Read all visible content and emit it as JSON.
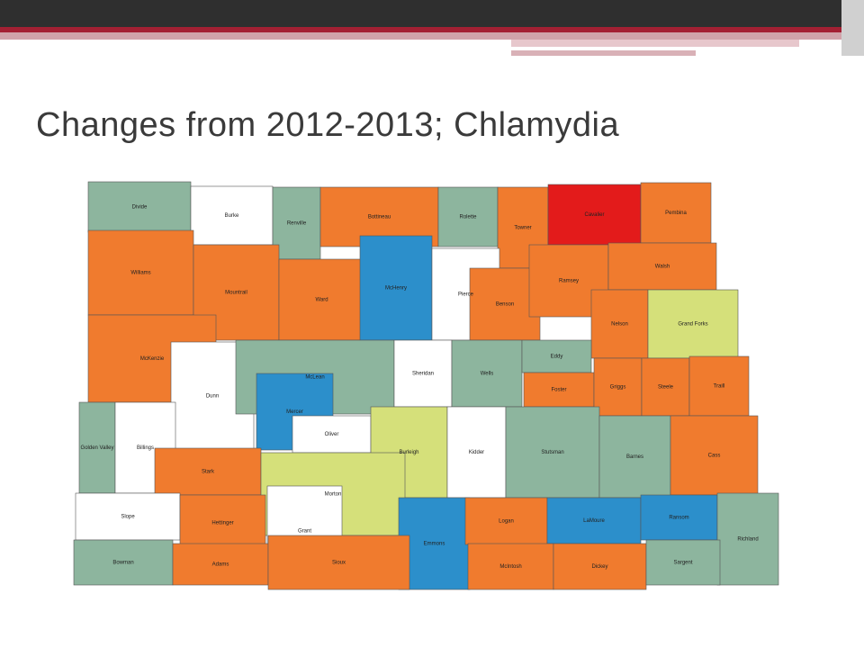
{
  "title": "Changes from 2012-2013; Chlamydia",
  "counties": [
    {
      "name": "Divide",
      "color": "#8db59e"
    },
    {
      "name": "Burke",
      "color": "#ffffff"
    },
    {
      "name": "Renville",
      "color": "#8db59e"
    },
    {
      "name": "Bottineau",
      "color": "#f07b2e"
    },
    {
      "name": "Rolette",
      "color": "#8db59e"
    },
    {
      "name": "Towner",
      "color": "#f07b2e"
    },
    {
      "name": "Cavalier",
      "color": "#e31b1b"
    },
    {
      "name": "Pembina",
      "color": "#f07b2e"
    },
    {
      "name": "Williams",
      "color": "#f07b2e"
    },
    {
      "name": "Mountrail",
      "color": "#f07b2e"
    },
    {
      "name": "Ward",
      "color": "#f07b2e"
    },
    {
      "name": "McHenry",
      "color": "#2c8fcb"
    },
    {
      "name": "Pierce",
      "color": "#ffffff"
    },
    {
      "name": "Benson",
      "color": "#f07b2e"
    },
    {
      "name": "Ramsey",
      "color": "#f07b2e"
    },
    {
      "name": "Walsh",
      "color": "#f07b2e"
    },
    {
      "name": "Nelson",
      "color": "#f07b2e"
    },
    {
      "name": "Grand Forks",
      "color": "#d5e07a"
    },
    {
      "name": "McKenzie",
      "color": "#f07b2e"
    },
    {
      "name": "Dunn",
      "color": "#ffffff"
    },
    {
      "name": "McLean",
      "color": "#8db59e"
    },
    {
      "name": "Sheridan",
      "color": "#ffffff"
    },
    {
      "name": "Wells",
      "color": "#8db59e"
    },
    {
      "name": "Eddy",
      "color": "#8db59e"
    },
    {
      "name": "Foster",
      "color": "#f07b2e"
    },
    {
      "name": "Griggs",
      "color": "#f07b2e"
    },
    {
      "name": "Steele",
      "color": "#f07b2e"
    },
    {
      "name": "Traill",
      "color": "#f07b2e"
    },
    {
      "name": "Mercer",
      "color": "#2c8fcb"
    },
    {
      "name": "Oliver",
      "color": "#ffffff"
    },
    {
      "name": "Burleigh",
      "color": "#d5e07a"
    },
    {
      "name": "Kidder",
      "color": "#ffffff"
    },
    {
      "name": "Stutsman",
      "color": "#8db59e"
    },
    {
      "name": "Barnes",
      "color": "#8db59e"
    },
    {
      "name": "Cass",
      "color": "#f07b2e"
    },
    {
      "name": "Golden Valley",
      "color": "#8db59e"
    },
    {
      "name": "Billings",
      "color": "#ffffff"
    },
    {
      "name": "Stark",
      "color": "#f07b2e"
    },
    {
      "name": "Morton",
      "color": "#d5e07a"
    },
    {
      "name": "Slope",
      "color": "#ffffff"
    },
    {
      "name": "Hettinger",
      "color": "#f07b2e"
    },
    {
      "name": "Grant",
      "color": "#ffffff"
    },
    {
      "name": "Emmons",
      "color": "#2c8fcb"
    },
    {
      "name": "Logan",
      "color": "#f07b2e"
    },
    {
      "name": "LaMoure",
      "color": "#2c8fcb"
    },
    {
      "name": "Ransom",
      "color": "#2c8fcb"
    },
    {
      "name": "Richland",
      "color": "#8db59e"
    },
    {
      "name": "Bowman",
      "color": "#8db59e"
    },
    {
      "name": "Adams",
      "color": "#f07b2e"
    },
    {
      "name": "Sioux",
      "color": "#f07b2e"
    },
    {
      "name": "McIntosh",
      "color": "#f07b2e"
    },
    {
      "name": "Dickey",
      "color": "#f07b2e"
    },
    {
      "name": "Sargent",
      "color": "#8db59e"
    }
  ]
}
